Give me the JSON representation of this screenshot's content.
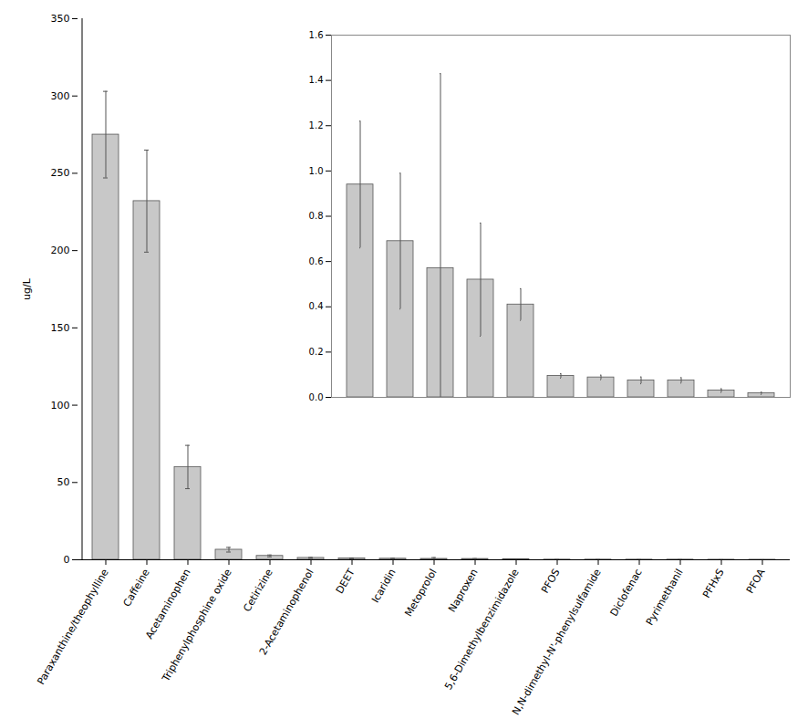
{
  "chart_data": [
    {
      "type": "bar",
      "categories": [
        "Paraxanthine/theophylline",
        "Caffeine",
        "Acetaminophen",
        "Triphenylphosphine oxide",
        "Cetirizine",
        "2-Acetaminophenol",
        "DEET",
        "Icaridin",
        "Metoprolol",
        "Naproxen",
        "5,6-Dimethylbenzimidazole",
        "PFOS",
        "N,N-dimethyl-N'-phenylsulfamide",
        "Diclofenac",
        "Pyrimethanil",
        "PFHxS",
        "PFOA"
      ],
      "values": [
        275,
        232,
        60,
        6.5,
        2.5,
        1.2,
        0.94,
        0.69,
        0.57,
        0.52,
        0.41,
        0.095,
        0.088,
        0.075,
        0.075,
        0.03,
        0.018
      ],
      "errors": [
        28,
        33,
        14,
        1.5,
        0.6,
        0.3,
        0.28,
        0.3,
        0.86,
        0.25,
        0.07,
        0.01,
        0.01,
        0.015,
        0.012,
        0.008,
        0.005
      ],
      "color": "#c8c8c8",
      "ylabel": "ug/L",
      "ylim": [
        0,
        350
      ],
      "yticks": [
        0,
        50,
        100,
        150,
        200,
        250,
        300,
        350
      ],
      "grid": false
    },
    {
      "type": "bar",
      "categories": [
        "DEET",
        "Icaridin",
        "Metoprolol",
        "Naproxen",
        "5,6-Dimethylbenzimidazole",
        "PFOS",
        "N,N-dimethyl-N'-phenylsulfamide",
        "Diclofenac",
        "Pyrimethanil",
        "PFHxS",
        "PFOA"
      ],
      "values": [
        0.94,
        0.69,
        0.57,
        0.52,
        0.41,
        0.095,
        0.088,
        0.075,
        0.075,
        0.03,
        0.018
      ],
      "errors": [
        0.28,
        0.3,
        0.86,
        0.25,
        0.07,
        0.01,
        0.01,
        0.015,
        0.012,
        0.008,
        0.005
      ],
      "color": "#c8c8c8",
      "ylim": [
        0,
        1.6
      ],
      "yticks": [
        {
          "value": 0.0,
          "label": "0.0"
        },
        0.2,
        0.4,
        0.6,
        0.8,
        {
          "value": 1.0,
          "label": "1.0"
        },
        1.2,
        1.4,
        1.6
      ],
      "tick_labels": "y",
      "grid": false
    }
  ]
}
